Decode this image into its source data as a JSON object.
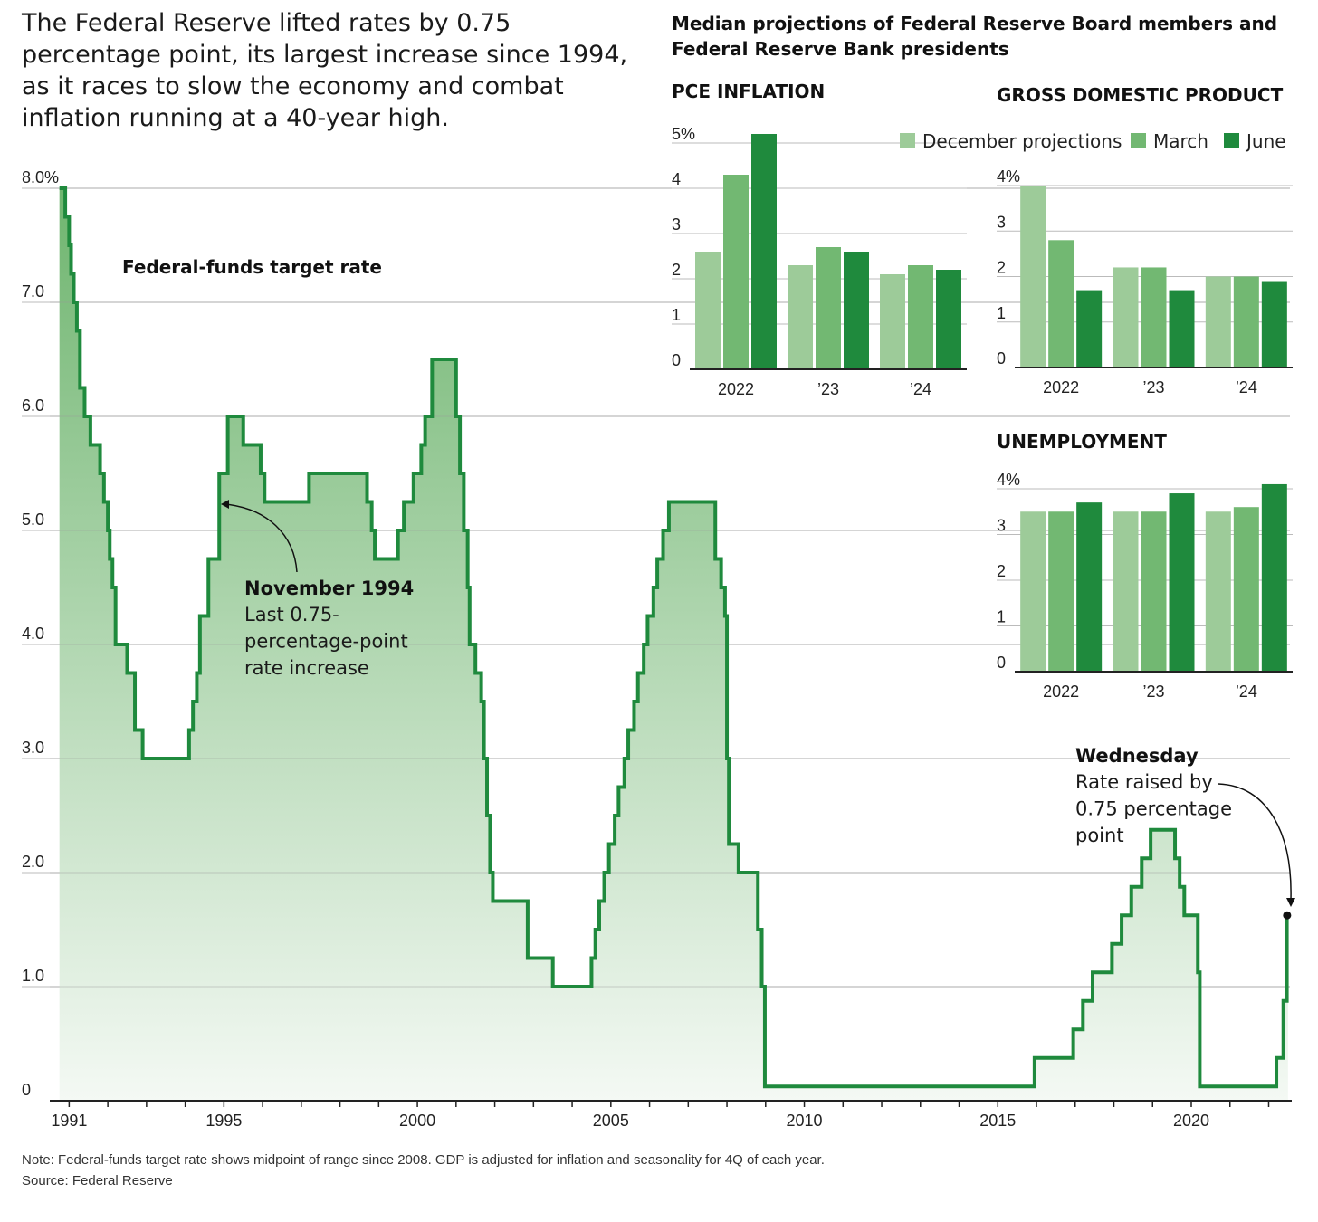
{
  "headline": "The Federal Reserve lifted rates by 0.75 percentage point, its largest increase since 1994, as it races to slow the economy and combat inflation running at a 40-year high.",
  "projections_title": "Median projections of Federal Reserve Board members and Federal Reserve Bank presidents",
  "note": "Note: Federal-funds target rate shows midpoint of range since 2008. GDP is adjusted for inflation and seasonality for 4Q of each year.",
  "source": "Source: Federal Reserve",
  "colors": {
    "line": "#1f8a3d",
    "fill_top": "#6fb56f",
    "fill_bottom": "#f4f9f4",
    "december": "#9dcb99",
    "march": "#72b872",
    "june": "#1f8a3d",
    "grid": "#bbbbbb",
    "axis": "#222222"
  },
  "annotations": {
    "nov1994_title": "November 1994",
    "nov1994_lines": [
      "Last 0.75-",
      "percentage-point",
      "rate increase"
    ],
    "wed_title": "Wednesday",
    "wed_lines": [
      "Rate raised by",
      "0.75 percentage",
      "point"
    ]
  },
  "legend": [
    "December projections",
    "March",
    "June"
  ],
  "chart_data": [
    {
      "type": "line",
      "title": "Federal-funds target rate",
      "xlim": [
        1990.5,
        2022.55
      ],
      "ylim": [
        0,
        8
      ],
      "y_ticks": [
        "8.0%",
        "7.0",
        "6.0",
        "5.0",
        "4.0",
        "3.0",
        "2.0",
        "1.0",
        "0"
      ],
      "y_tick_values": [
        8,
        7,
        6,
        5,
        4,
        3,
        2,
        1,
        0
      ],
      "x_ticks": [
        "1991",
        "1995",
        "2000",
        "2005",
        "2010",
        "2015",
        "2020"
      ],
      "x_tick_values": [
        1991,
        1995,
        2000,
        2005,
        2010,
        2015,
        2020
      ],
      "step": true,
      "points": [
        [
          1990.75,
          8.0
        ],
        [
          1990.9,
          7.75
        ],
        [
          1991.0,
          7.5
        ],
        [
          1991.05,
          7.25
        ],
        [
          1991.12,
          7.0
        ],
        [
          1991.2,
          6.75
        ],
        [
          1991.28,
          6.25
        ],
        [
          1991.4,
          6.0
        ],
        [
          1991.55,
          5.75
        ],
        [
          1991.8,
          5.5
        ],
        [
          1991.9,
          5.25
        ],
        [
          1992.0,
          5.0
        ],
        [
          1992.05,
          4.75
        ],
        [
          1992.12,
          4.5
        ],
        [
          1992.2,
          4.0
        ],
        [
          1992.5,
          3.75
        ],
        [
          1992.7,
          3.25
        ],
        [
          1992.9,
          3.0
        ],
        [
          1994.1,
          3.25
        ],
        [
          1994.2,
          3.5
        ],
        [
          1994.3,
          3.75
        ],
        [
          1994.38,
          4.25
        ],
        [
          1994.6,
          4.75
        ],
        [
          1994.88,
          5.5
        ],
        [
          1995.1,
          6.0
        ],
        [
          1995.5,
          5.75
        ],
        [
          1995.95,
          5.5
        ],
        [
          1996.05,
          5.25
        ],
        [
          1997.2,
          5.5
        ],
        [
          1998.7,
          5.25
        ],
        [
          1998.82,
          5.0
        ],
        [
          1998.9,
          4.75
        ],
        [
          1999.5,
          5.0
        ],
        [
          1999.65,
          5.25
        ],
        [
          1999.9,
          5.5
        ],
        [
          2000.1,
          5.75
        ],
        [
          2000.2,
          6.0
        ],
        [
          2000.38,
          6.5
        ],
        [
          2001.0,
          6.0
        ],
        [
          2001.1,
          5.5
        ],
        [
          2001.2,
          5.0
        ],
        [
          2001.3,
          4.5
        ],
        [
          2001.35,
          4.0
        ],
        [
          2001.5,
          3.75
        ],
        [
          2001.65,
          3.5
        ],
        [
          2001.72,
          3.0
        ],
        [
          2001.8,
          2.5
        ],
        [
          2001.88,
          2.0
        ],
        [
          2001.95,
          1.75
        ],
        [
          2002.85,
          1.25
        ],
        [
          2003.5,
          1.0
        ],
        [
          2004.5,
          1.25
        ],
        [
          2004.6,
          1.5
        ],
        [
          2004.7,
          1.75
        ],
        [
          2004.83,
          2.0
        ],
        [
          2004.95,
          2.25
        ],
        [
          2005.1,
          2.5
        ],
        [
          2005.2,
          2.75
        ],
        [
          2005.35,
          3.0
        ],
        [
          2005.45,
          3.25
        ],
        [
          2005.6,
          3.5
        ],
        [
          2005.7,
          3.75
        ],
        [
          2005.85,
          4.0
        ],
        [
          2005.95,
          4.25
        ],
        [
          2006.1,
          4.5
        ],
        [
          2006.2,
          4.75
        ],
        [
          2006.35,
          5.0
        ],
        [
          2006.5,
          5.25
        ],
        [
          2007.7,
          4.75
        ],
        [
          2007.85,
          4.5
        ],
        [
          2007.95,
          4.25
        ],
        [
          2008.0,
          3.0
        ],
        [
          2008.05,
          2.25
        ],
        [
          2008.3,
          2.0
        ],
        [
          2008.8,
          1.5
        ],
        [
          2008.9,
          1.0
        ],
        [
          2008.98,
          0.125
        ],
        [
          2015.95,
          0.375
        ],
        [
          2016.95,
          0.625
        ],
        [
          2017.2,
          0.875
        ],
        [
          2017.45,
          1.125
        ],
        [
          2017.95,
          1.375
        ],
        [
          2018.2,
          1.625
        ],
        [
          2018.45,
          1.875
        ],
        [
          2018.72,
          2.125
        ],
        [
          2018.95,
          2.375
        ],
        [
          2019.58,
          2.125
        ],
        [
          2019.7,
          1.875
        ],
        [
          2019.82,
          1.625
        ],
        [
          2020.17,
          1.125
        ],
        [
          2020.22,
          0.125
        ],
        [
          2022.2,
          0.375
        ],
        [
          2022.38,
          0.875
        ],
        [
          2022.47,
          1.625
        ]
      ],
      "end_x": 2022.5
    },
    {
      "type": "bar",
      "title": "PCE INFLATION",
      "categories": [
        "2022",
        "’23",
        "’24"
      ],
      "ylim": [
        0,
        5
      ],
      "y_ticks": [
        "5%",
        "4",
        "3",
        "2",
        "1",
        "0"
      ],
      "y_tick_values": [
        5,
        4,
        3,
        2,
        1,
        0
      ],
      "series": [
        {
          "name": "December projections",
          "values": [
            2.6,
            2.3,
            2.1
          ]
        },
        {
          "name": "March",
          "values": [
            4.3,
            2.7,
            2.3
          ]
        },
        {
          "name": "June",
          "values": [
            5.2,
            2.6,
            2.2
          ]
        }
      ]
    },
    {
      "type": "bar",
      "title": "GROSS DOMESTIC PRODUCT",
      "categories": [
        "2022",
        "’23",
        "’24"
      ],
      "ylim": [
        0,
        4
      ],
      "y_ticks": [
        "4%",
        "3",
        "2",
        "1",
        "0"
      ],
      "y_tick_values": [
        4,
        3,
        2,
        1,
        0
      ],
      "series": [
        {
          "name": "December projections",
          "values": [
            4.0,
            2.2,
            2.0
          ]
        },
        {
          "name": "March",
          "values": [
            2.8,
            2.2,
            2.0
          ]
        },
        {
          "name": "June",
          "values": [
            1.7,
            1.7,
            1.9
          ]
        }
      ]
    },
    {
      "type": "bar",
      "title": "UNEMPLOYMENT",
      "categories": [
        "2022",
        "’23",
        "’24"
      ],
      "ylim": [
        0,
        4
      ],
      "y_ticks": [
        "4%",
        "3",
        "2",
        "1",
        "0"
      ],
      "y_tick_values": [
        4,
        3,
        2,
        1,
        0
      ],
      "series": [
        {
          "name": "December projections",
          "values": [
            3.5,
            3.5,
            3.5
          ]
        },
        {
          "name": "March",
          "values": [
            3.5,
            3.5,
            3.6
          ]
        },
        {
          "name": "June",
          "values": [
            3.7,
            3.9,
            4.1
          ]
        }
      ]
    }
  ]
}
